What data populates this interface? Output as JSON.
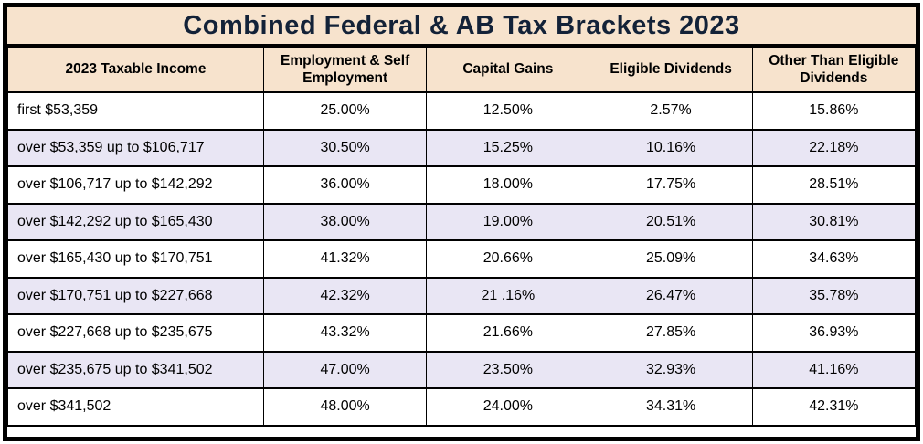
{
  "page": {
    "title": "Combined Federal & AB Tax Brackets 2023"
  },
  "table": {
    "columns": [
      "2023 Taxable Income",
      "Employment & Self Employment",
      "Capital Gains",
      "Eligible Dividends",
      "Other Than Eligible Dividends"
    ],
    "rows": [
      [
        "first $53,359",
        "25.00%",
        "12.50%",
        "2.57%",
        "15.86%"
      ],
      [
        "over $53,359 up to $106,717",
        "30.50%",
        "15.25%",
        "10.16%",
        "22.18%"
      ],
      [
        "over $106,717 up to $142,292",
        "36.00%",
        "18.00%",
        "17.75%",
        "28.51%"
      ],
      [
        "over $142,292 up to $165,430",
        "38.00%",
        "19.00%",
        "20.51%",
        "30.81%"
      ],
      [
        "over $165,430 up to $170,751",
        "41.32%",
        "20.66%",
        "25.09%",
        "34.63%"
      ],
      [
        "over $170,751 up to $227,668",
        "42.32%",
        "21 .16%",
        "26.47%",
        "35.78%"
      ],
      [
        "over $227,668 up to $235,675",
        "43.32%",
        "21.66%",
        "27.85%",
        "36.93%"
      ],
      [
        "over $235,675 up to $341,502",
        "47.00%",
        "23.50%",
        "32.93%",
        "41.16%"
      ],
      [
        "over $341,502",
        "48.00%",
        "24.00%",
        "34.31%",
        "42.31%"
      ]
    ]
  },
  "colors": {
    "header_bg": "#f7e3cd",
    "alt_row_bg": "#e9e6f4",
    "row_bg": "#ffffff",
    "border": "#000000",
    "title_text": "#132238",
    "body_text": "#000000"
  }
}
